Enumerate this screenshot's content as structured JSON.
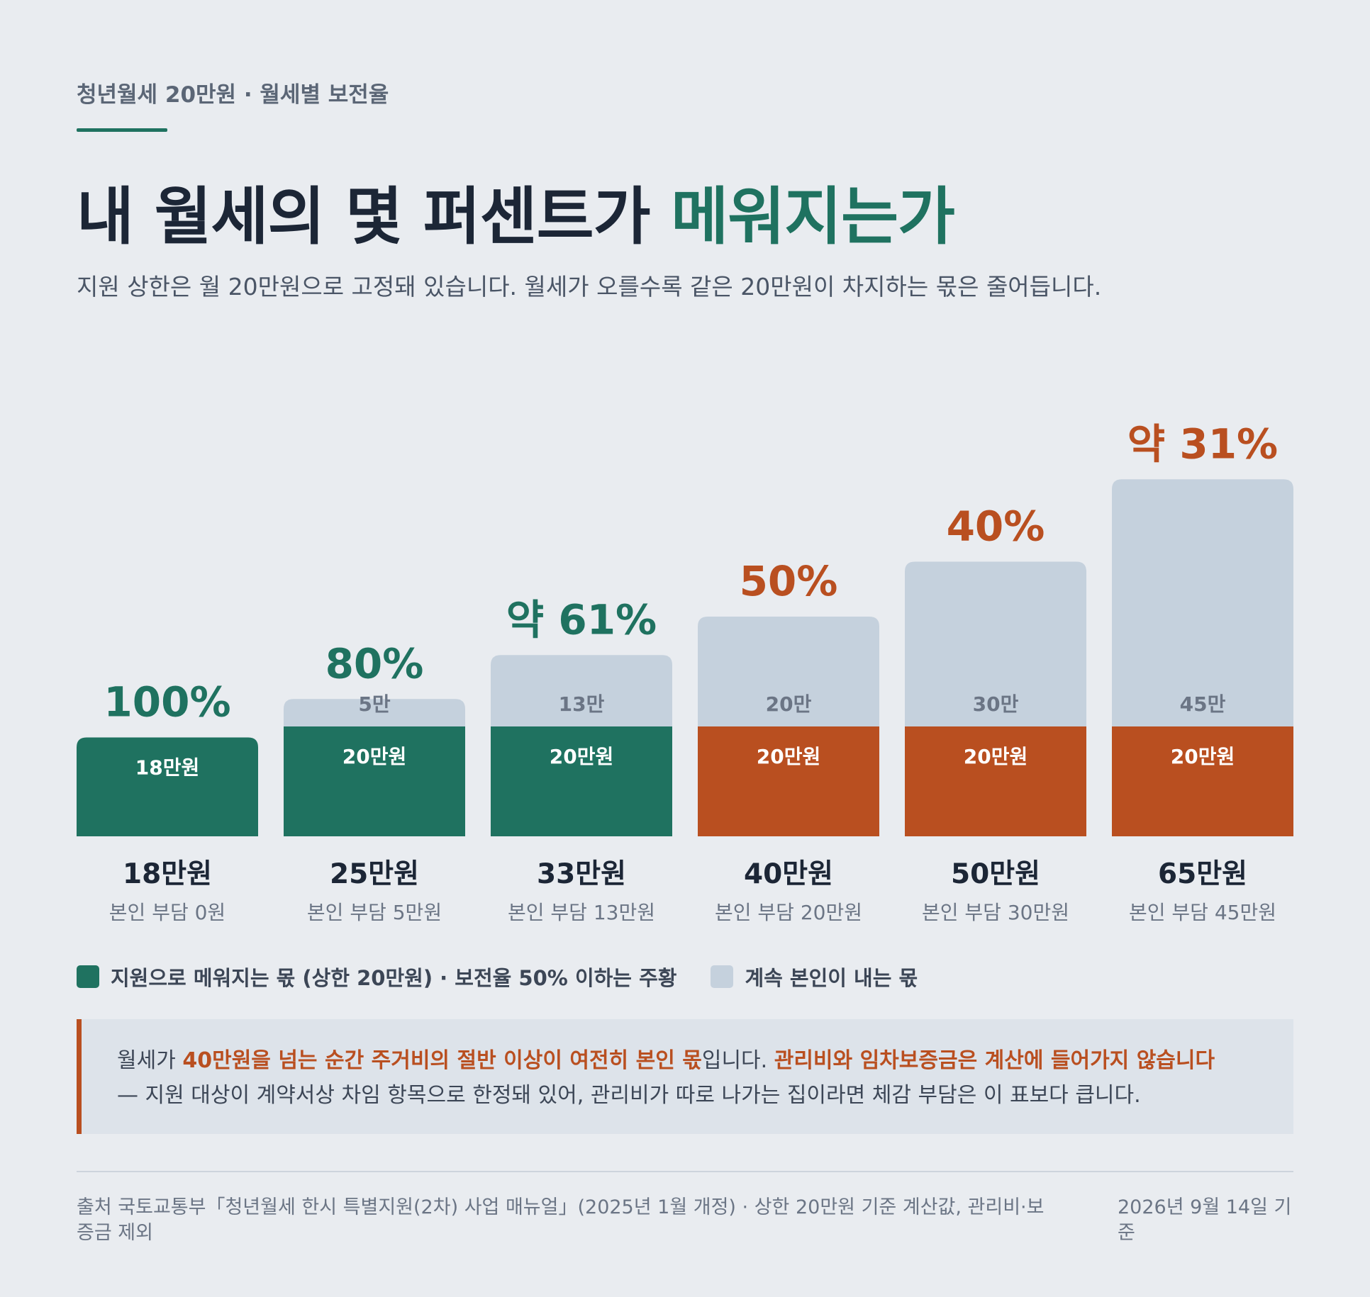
{
  "header": {
    "kicker": "청년월세 20만원 · 월세별 보전율",
    "title_main": "내 월세의 몇 퍼센트가 ",
    "title_accent": "메워지는가",
    "subtitle": "지원 상한은 월 20만원으로 고정돼 있습니다. 월세가 오를수록 같은 20만원이 차지하는 몫은 줄어듭니다."
  },
  "colors": {
    "supported_good": "#1f7260",
    "supported_low": "#b94f20",
    "self_pay": "#c5d1dd",
    "pct_good": "#1f7260",
    "pct_low": "#b94f20"
  },
  "chart_data": {
    "type": "bar",
    "stacked": true,
    "categories": [
      "18만원",
      "25만원",
      "33만원",
      "40만원",
      "50만원",
      "65만원"
    ],
    "sublabels": [
      "본인 부담 0원",
      "본인 부담 5만원",
      "본인 부담 13만원",
      "본인 부담 20만원",
      "본인 부담 30만원",
      "본인 부담 45만원"
    ],
    "series": [
      {
        "name": "지원으로 메워지는 몫 (상한 20만원) · 보전율 50% 이하는 주황",
        "values": [
          18,
          20,
          20,
          20,
          20,
          20
        ],
        "labels": [
          "18만원",
          "20만원",
          "20만원",
          "20만원",
          "20만원",
          "20만원"
        ]
      },
      {
        "name": "계속 본인이 내는 몫",
        "values": [
          0,
          5,
          13,
          20,
          30,
          45
        ],
        "labels": [
          "",
          "5만",
          "13만",
          "20만",
          "30만",
          "45만"
        ]
      }
    ],
    "percent_labels": [
      "100%",
      "80%",
      "약 61%",
      "50%",
      "40%",
      "약 31%"
    ],
    "low_coverage": [
      false,
      false,
      false,
      true,
      true,
      true
    ],
    "ylim": [
      0,
      65
    ]
  },
  "legend": {
    "supported": "지원으로 메워지는 몫 (상한 20만원) · 보전율 50% 이하는 주황",
    "self_pay": "계속 본인이 내는 몫"
  },
  "callout": {
    "p1": "월세가 ",
    "p2": "40만원을 넘는 순간 주거비의 절반 이상이 여전히 본인 몫",
    "p3": "입니다. ",
    "p4": "관리비와 임차보증금은 계산에 들어가지 않습니다",
    "line2": "— 지원 대상이 계약서상 차임 항목으로 한정돼 있어, 관리비가 따로 나가는 집이라면 체감 부담은 이 표보다 큽니다."
  },
  "footer": {
    "source": "출처 국토교통부「청년월세 한시 특별지원(2차) 사업 매뉴얼」(2025년 1월 개정) · 상한 20만원 기준 계산값, 관리비·보증금 제외",
    "date": "2026년 9월 14일 기준"
  }
}
